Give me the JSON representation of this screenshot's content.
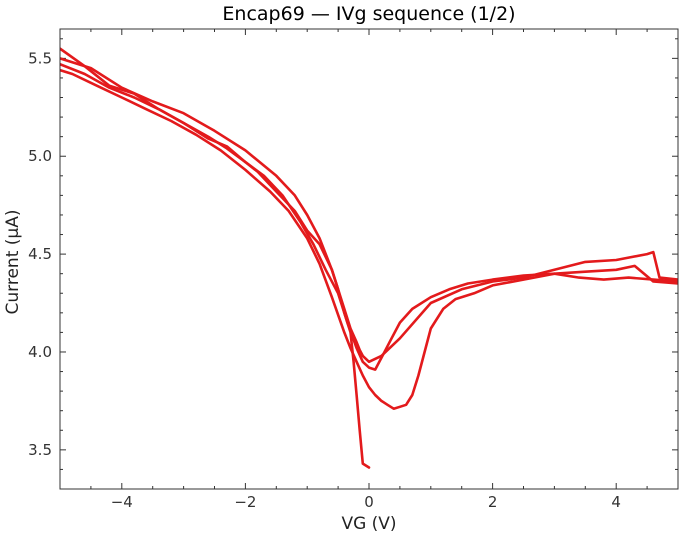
{
  "chart_data": {
    "type": "line",
    "title": "Encap69 — IVg sequence (1/2)",
    "xlabel": "VG (V)",
    "ylabel": "Current (μA)",
    "xlim": [
      -5,
      5
    ],
    "ylim": [
      3.3,
      5.65
    ],
    "xticks": [
      -4,
      -2,
      0,
      2,
      4
    ],
    "xtick_labels": [
      "−4",
      "−2",
      "0",
      "2",
      "4"
    ],
    "yticks": [
      3.5,
      4.0,
      4.5,
      5.0,
      5.5
    ],
    "ytick_labels": [
      "3.5",
      "4.0",
      "4.5",
      "5.0",
      "5.5"
    ],
    "grid": false,
    "color": "#e31a1c",
    "series": [
      {
        "x": [
          0.0,
          -0.1,
          -0.15,
          -0.2,
          -0.25,
          -0.3,
          -0.4,
          -0.5,
          -0.6,
          -0.8,
          -1.0,
          -1.2,
          -1.5,
          -1.8,
          -2.0,
          -2.3,
          -2.6,
          -3.0,
          -3.4,
          -3.8,
          -4.2,
          -4.6,
          -5.0
        ],
        "y": [
          3.41,
          3.43,
          3.6,
          3.78,
          3.95,
          4.1,
          4.2,
          4.32,
          4.42,
          4.55,
          4.62,
          4.72,
          4.82,
          4.92,
          4.97,
          5.04,
          5.1,
          5.17,
          5.24,
          5.3,
          5.35,
          5.42,
          5.47
        ]
      },
      {
        "x": [
          -5.0,
          -4.6,
          -4.2,
          -3.8,
          -3.4,
          -3.0,
          -2.6,
          -2.3,
          -2.0,
          -1.7,
          -1.4,
          -1.1,
          -0.9,
          -0.7,
          -0.5,
          -0.35,
          -0.2,
          -0.1,
          0.0,
          0.1,
          0.2,
          0.35,
          0.5,
          0.7,
          1.0,
          1.3,
          1.6,
          2.0,
          2.5,
          3.0,
          3.5,
          4.0,
          4.3,
          4.6,
          5.0
        ],
        "y": [
          5.55,
          5.46,
          5.36,
          5.32,
          5.24,
          5.17,
          5.09,
          5.05,
          4.97,
          4.9,
          4.8,
          4.66,
          4.55,
          4.42,
          4.3,
          4.15,
          4.02,
          3.95,
          3.92,
          3.91,
          3.97,
          4.06,
          4.15,
          4.22,
          4.28,
          4.32,
          4.35,
          4.37,
          4.39,
          4.4,
          4.41,
          4.42,
          4.44,
          4.36,
          4.35
        ]
      },
      {
        "x": [
          5.0,
          4.6,
          4.2,
          3.8,
          3.4,
          3.0,
          2.5,
          2.0,
          1.7,
          1.4,
          1.2,
          1.0,
          0.9,
          0.8,
          0.7,
          0.6,
          0.5,
          0.4,
          0.3,
          0.2,
          0.1,
          0.0,
          -0.1,
          -0.2,
          -0.3,
          -0.4,
          -0.6,
          -0.8,
          -1.0,
          -1.3,
          -1.6,
          -2.0,
          -2.4,
          -2.8,
          -3.2,
          -3.6,
          -4.0,
          -4.4,
          -4.8,
          -5.0
        ],
        "y": [
          4.36,
          4.37,
          4.38,
          4.37,
          4.38,
          4.4,
          4.37,
          4.34,
          4.3,
          4.27,
          4.22,
          4.12,
          4.0,
          3.88,
          3.78,
          3.73,
          3.72,
          3.71,
          3.73,
          3.75,
          3.78,
          3.82,
          3.88,
          3.95,
          4.02,
          4.1,
          4.28,
          4.45,
          4.58,
          4.72,
          4.82,
          4.93,
          5.03,
          5.11,
          5.18,
          5.24,
          5.3,
          5.36,
          5.42,
          5.44
        ]
      },
      {
        "x": [
          -5.0,
          -4.5,
          -4.0,
          -3.5,
          -3.0,
          -2.5,
          -2.0,
          -1.5,
          -1.2,
          -1.0,
          -0.8,
          -0.6,
          -0.4,
          -0.3,
          -0.2,
          -0.15,
          -0.1,
          0.0,
          0.2,
          0.5,
          1.0,
          1.5,
          2.0,
          2.5,
          3.0,
          3.5,
          4.0,
          4.5,
          4.6,
          4.7,
          5.0
        ],
        "y": [
          5.5,
          5.45,
          5.35,
          5.28,
          5.22,
          5.13,
          5.03,
          4.9,
          4.8,
          4.7,
          4.58,
          4.42,
          4.22,
          4.12,
          4.05,
          4.01,
          3.98,
          3.95,
          3.98,
          4.07,
          4.25,
          4.32,
          4.36,
          4.38,
          4.42,
          4.46,
          4.47,
          4.5,
          4.51,
          4.38,
          4.37
        ]
      }
    ]
  }
}
